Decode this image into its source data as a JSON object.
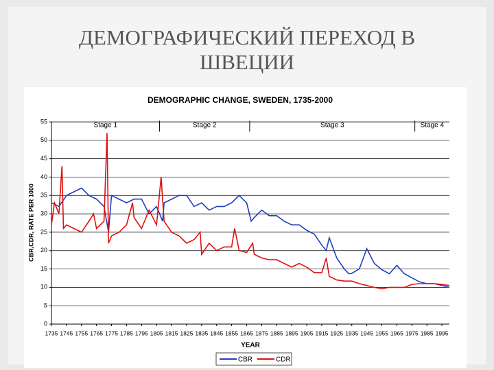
{
  "slide": {
    "title_lines": [
      "ДЕМОГРАФИЧЕСКИЙ ПЕРЕХОД В",
      "ШВЕЦИИ"
    ]
  },
  "chart_data": {
    "type": "line",
    "title": "DEMOGRAPHIC CHANGE, SWEDEN, 1735-2000",
    "xlabel": "YEAR",
    "ylabel": "CBR,CDR, RATE PER 1000",
    "xlim": [
      1735,
      2000
    ],
    "ylim": [
      0,
      55
    ],
    "xticks": [
      1735,
      1745,
      1755,
      1765,
      1775,
      1785,
      1795,
      1805,
      1815,
      1825,
      1835,
      1845,
      1855,
      1865,
      1875,
      1885,
      1895,
      1905,
      1915,
      1925,
      1935,
      1945,
      1955,
      1965,
      1975,
      1985,
      1995
    ],
    "yticks": [
      0,
      5,
      10,
      15,
      20,
      25,
      30,
      35,
      40,
      45,
      50,
      55
    ],
    "grid": true,
    "legend": "bottom",
    "stages": [
      {
        "label": "Stage 1",
        "start": 1735,
        "end": 1807
      },
      {
        "label": "Stage 2",
        "start": 1807,
        "end": 1867
      },
      {
        "label": "Stage 3",
        "start": 1867,
        "end": 1977
      },
      {
        "label": "Stage 4",
        "start": 1977,
        "end": 2000
      }
    ],
    "series": [
      {
        "name": "CBR",
        "color": "#1f3fbf",
        "x": [
          1735,
          1740,
          1745,
          1750,
          1755,
          1760,
          1765,
          1770,
          1773,
          1775,
          1780,
          1785,
          1790,
          1795,
          1800,
          1805,
          1809,
          1810,
          1815,
          1820,
          1825,
          1830,
          1835,
          1840,
          1845,
          1850,
          1855,
          1860,
          1865,
          1868,
          1870,
          1875,
          1880,
          1885,
          1890,
          1895,
          1900,
          1905,
          1910,
          1915,
          1918,
          1920,
          1925,
          1930,
          1933,
          1935,
          1940,
          1945,
          1950,
          1955,
          1960,
          1965,
          1970,
          1975,
          1980,
          1985,
          1990,
          1995,
          2000
        ],
        "values": [
          33,
          32,
          35,
          36,
          37,
          35,
          34,
          32,
          25,
          35,
          34,
          33,
          34,
          34,
          30,
          32,
          28,
          33,
          34,
          35,
          35,
          32,
          33,
          31,
          32,
          32,
          33,
          35,
          33,
          28,
          29,
          31,
          29.5,
          29.5,
          28,
          27,
          27,
          25.5,
          24.5,
          21.5,
          20,
          23.5,
          18,
          15,
          13.7,
          13.8,
          15,
          20.5,
          16.5,
          14.8,
          13.7,
          16,
          13.7,
          12.6,
          11.5,
          11,
          11,
          10.5,
          10
        ]
      },
      {
        "name": "CDR",
        "color": "#e01010",
        "x": [
          1735,
          1737,
          1740,
          1742,
          1743,
          1745,
          1750,
          1755,
          1760,
          1763,
          1765,
          1770,
          1772,
          1773,
          1775,
          1780,
          1785,
          1789,
          1790,
          1795,
          1800,
          1805,
          1808,
          1810,
          1815,
          1820,
          1825,
          1830,
          1834,
          1835,
          1840,
          1845,
          1850,
          1855,
          1857,
          1860,
          1865,
          1869,
          1870,
          1875,
          1880,
          1885,
          1890,
          1895,
          1900,
          1905,
          1910,
          1915,
          1918,
          1920,
          1925,
          1930,
          1935,
          1940,
          1945,
          1950,
          1955,
          1960,
          1965,
          1970,
          1975,
          1980,
          1985,
          1990,
          1995,
          2000
        ],
        "values": [
          27,
          33,
          30,
          43,
          26,
          27,
          26,
          25,
          28,
          30,
          26,
          28,
          52,
          22,
          24,
          25,
          27,
          33,
          29,
          26,
          31,
          27,
          40,
          28,
          25,
          24,
          22,
          23,
          25,
          19,
          22,
          20,
          21,
          21,
          26,
          20,
          19.5,
          22,
          19,
          18,
          17.5,
          17.5,
          16.5,
          15.5,
          16.5,
          15.5,
          14,
          14,
          18,
          13,
          12,
          11.7,
          11.7,
          11,
          10.5,
          10,
          9.6,
          10,
          10,
          10,
          10.8,
          11,
          11,
          11,
          10.8,
          10.5
        ]
      }
    ]
  }
}
